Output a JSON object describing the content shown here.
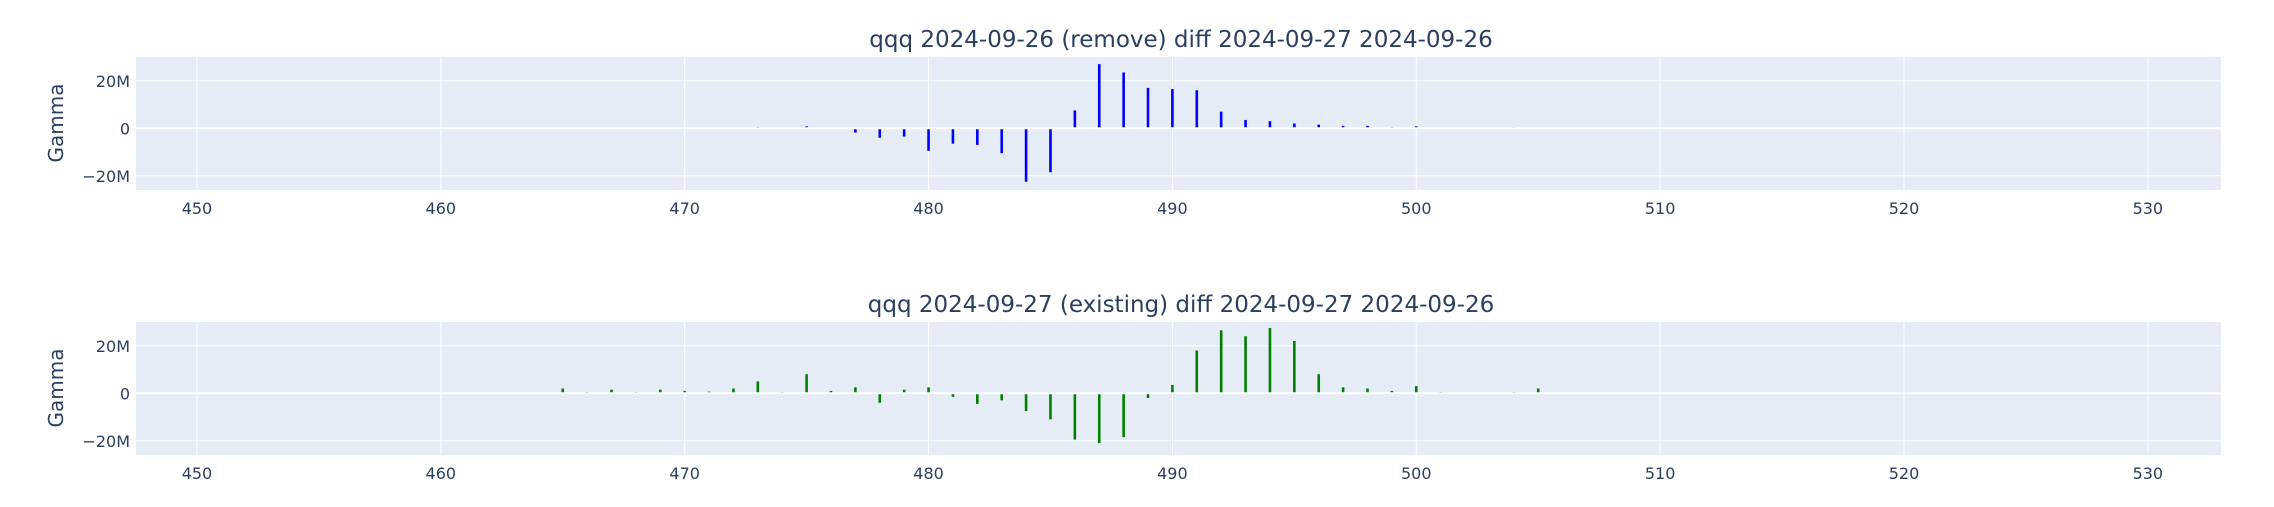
{
  "chart_data": [
    {
      "type": "bar",
      "title": "qqq 2024-09-26 (remove) diff 2024-09-27 2024-09-26",
      "xlabel": "",
      "ylabel": "Gamma",
      "xlim": [
        447.5,
        533
      ],
      "ylim": [
        -26000000,
        30000000
      ],
      "xticks": [
        450,
        460,
        470,
        480,
        490,
        500,
        510,
        520,
        530
      ],
      "yticks": [
        {
          "value": -20000000,
          "label": "−20M"
        },
        {
          "value": 0,
          "label": "0"
        },
        {
          "value": 20000000,
          "label": "20M"
        }
      ],
      "color": "#0000ff",
      "grid": true,
      "x": [
        448,
        449,
        450,
        451,
        452,
        453,
        454,
        455,
        456,
        457,
        458,
        459,
        460,
        461,
        462,
        463,
        464,
        465,
        466,
        467,
        468,
        469,
        470,
        471,
        472,
        473,
        474,
        475,
        476,
        477,
        478,
        479,
        480,
        481,
        482,
        483,
        484,
        485,
        486,
        487,
        488,
        489,
        490,
        491,
        492,
        493,
        494,
        495,
        496,
        497,
        498,
        499,
        500,
        501,
        502,
        503,
        504,
        505,
        506,
        507,
        508,
        509,
        510,
        511,
        512,
        513,
        514,
        515,
        516,
        517,
        518,
        519,
        520,
        521,
        522,
        523,
        524,
        525,
        526,
        527,
        528,
        529,
        530,
        531,
        532
      ],
      "values": [
        0,
        0,
        0,
        0,
        0,
        0,
        0,
        0,
        0,
        0,
        0,
        0,
        0,
        100000,
        100000,
        100000,
        100000,
        100000,
        100000,
        100000,
        100000,
        100000,
        100000,
        100000,
        200000,
        500000,
        300000,
        800000,
        200000,
        -1800000,
        -4000000,
        -3500000,
        -9500000,
        -6500000,
        -7000000,
        -10500000,
        -22500000,
        -18500000,
        7500000,
        27000000,
        23500000,
        17000000,
        16500000,
        16000000,
        7000000,
        3500000,
        3000000,
        2000000,
        1500000,
        1000000,
        1000000,
        500000,
        800000,
        300000,
        200000,
        300000,
        400000,
        300000,
        200000,
        200000,
        200000,
        0,
        0,
        0,
        100000,
        0,
        0,
        100000,
        0,
        0,
        0,
        0,
        100000,
        0,
        0,
        0,
        0,
        0,
        0,
        0,
        0,
        0,
        0,
        0,
        0
      ]
    },
    {
      "type": "bar",
      "title": "qqq 2024-09-27 (existing) diff 2024-09-27 2024-09-26",
      "xlabel": "",
      "ylabel": "Gamma",
      "xlim": [
        447.5,
        533
      ],
      "ylim": [
        -26000000,
        30000000
      ],
      "xticks": [
        450,
        460,
        470,
        480,
        490,
        500,
        510,
        520,
        530
      ],
      "yticks": [
        {
          "value": -20000000,
          "label": "−20M"
        },
        {
          "value": 0,
          "label": "0"
        },
        {
          "value": 20000000,
          "label": "20M"
        }
      ],
      "color": "#008000",
      "grid": true,
      "x": [
        448,
        449,
        450,
        451,
        452,
        453,
        454,
        455,
        456,
        457,
        458,
        459,
        460,
        461,
        462,
        463,
        464,
        465,
        466,
        467,
        468,
        469,
        470,
        471,
        472,
        473,
        474,
        475,
        476,
        477,
        478,
        479,
        480,
        481,
        482,
        483,
        484,
        485,
        486,
        487,
        488,
        489,
        490,
        491,
        492,
        493,
        494,
        495,
        496,
        497,
        498,
        499,
        500,
        501,
        502,
        503,
        504,
        505,
        506,
        507,
        508,
        509,
        510,
        511,
        512,
        513,
        514,
        515,
        516,
        517,
        518,
        519,
        520,
        521,
        522,
        523,
        524,
        525,
        526,
        527,
        528,
        529,
        530,
        531,
        532
      ],
      "values": [
        0,
        0,
        100000,
        100000,
        100000,
        100000,
        100000,
        100000,
        100000,
        100000,
        100000,
        100000,
        100000,
        200000,
        300000,
        300000,
        300000,
        2000000,
        500000,
        1500000,
        500000,
        1500000,
        1000000,
        700000,
        2000000,
        5000000,
        500000,
        8000000,
        1000000,
        2500000,
        -4000000,
        1500000,
        2500000,
        -1500000,
        -4500000,
        -3000000,
        -7500000,
        -11000000,
        -19500000,
        -21000000,
        -18500000,
        -2000000,
        3500000,
        18000000,
        26500000,
        24000000,
        27500000,
        22000000,
        8000000,
        2500000,
        2000000,
        1000000,
        3000000,
        500000,
        200000,
        300000,
        500000,
        2000000,
        200000,
        300000,
        200000,
        200000,
        200000,
        100000,
        100000,
        100000,
        100000,
        100000,
        100000,
        100000,
        100000,
        100000,
        200000,
        0,
        0,
        0,
        0,
        0,
        0,
        0,
        0,
        0,
        100000,
        0,
        0
      ]
    }
  ]
}
